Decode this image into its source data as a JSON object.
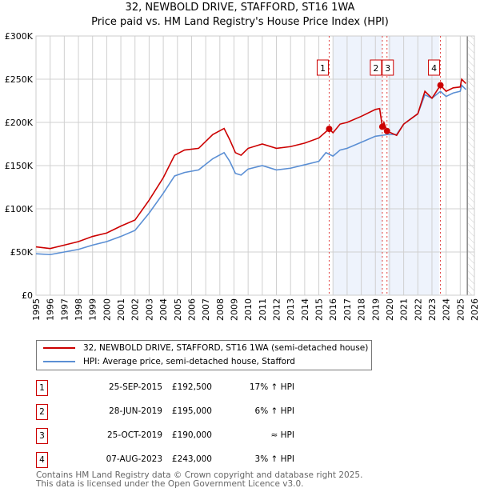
{
  "title": "32, NEWBOLD DRIVE, STAFFORD, ST16 1WA",
  "subtitle": "Price paid vs. HM Land Registry's House Price Index (HPI)",
  "chart_data": {
    "type": "line",
    "title": "Price paid vs. HM Land Registry's House Price Index (HPI)",
    "xlim": [
      1995,
      2026
    ],
    "ylim": [
      0,
      300000
    ],
    "x_ticks": [
      "1995",
      "1996",
      "1997",
      "1998",
      "1999",
      "2000",
      "2001",
      "2002",
      "2003",
      "2004",
      "2005",
      "2006",
      "2007",
      "2008",
      "2009",
      "2010",
      "2011",
      "2012",
      "2013",
      "2014",
      "2015",
      "2016",
      "2017",
      "2018",
      "2019",
      "2020",
      "2021",
      "2022",
      "2023",
      "2024",
      "2025",
      "2026"
    ],
    "y_ticks": [
      {
        "v": 0,
        "label": "£0"
      },
      {
        "v": 50000,
        "label": "£50K"
      },
      {
        "v": 100000,
        "label": "£100K"
      },
      {
        "v": 150000,
        "label": "£150K"
      },
      {
        "v": 200000,
        "label": "£200K"
      },
      {
        "v": 250000,
        "label": "£250K"
      },
      {
        "v": 300000,
        "label": "£300K"
      }
    ],
    "grid": true,
    "series": [
      {
        "name": "32, NEWBOLD DRIVE, STAFFORD, ST16 1WA (semi-detached house)",
        "color": "#cc0000",
        "x": [
          1995,
          1996,
          1997,
          1998,
          1999,
          2000,
          2001,
          2002,
          2003,
          2004,
          2004.8,
          2005.5,
          2006.5,
          2007.5,
          2008.3,
          2008.7,
          2009.1,
          2009.5,
          2010,
          2011,
          2012,
          2013,
          2014,
          2015,
          2015.73,
          2016,
          2016.5,
          2017,
          2018,
          2019,
          2019.3,
          2019.49,
          2019.6,
          2019.82,
          2020.5,
          2021,
          2022,
          2022.5,
          2023,
          2023.6,
          2024,
          2024.5,
          2025,
          2025.1,
          2025.4
        ],
        "y": [
          56000,
          54000,
          58000,
          62000,
          68000,
          72000,
          80000,
          87000,
          110000,
          136000,
          162000,
          168000,
          170000,
          186000,
          193000,
          180000,
          165000,
          162000,
          170000,
          175000,
          170000,
          172000,
          176000,
          182000,
          192500,
          188000,
          198000,
          200000,
          207000,
          215000,
          216000,
          195000,
          200000,
          190000,
          185000,
          198000,
          210000,
          236000,
          228000,
          243000,
          236000,
          240000,
          241000,
          250000,
          245000
        ]
      },
      {
        "name": "HPI: Average price, semi-detached house, Stafford",
        "color": "#5b8fd4",
        "x": [
          1995,
          1996,
          1997,
          1998,
          1999,
          2000,
          2001,
          2002,
          2003,
          2004,
          2004.8,
          2005.5,
          2006.5,
          2007.5,
          2008.3,
          2008.7,
          2009.1,
          2009.5,
          2010,
          2011,
          2012,
          2013,
          2014,
          2015,
          2015.5,
          2016,
          2016.5,
          2017,
          2018,
          2019,
          2019.9,
          2020.5,
          2021,
          2022,
          2022.5,
          2023,
          2023.6,
          2024,
          2024.5,
          2025,
          2025.1,
          2025.4
        ],
        "y": [
          48000,
          47000,
          50000,
          53000,
          58000,
          62000,
          68000,
          75000,
          95000,
          118000,
          138000,
          142000,
          145000,
          158000,
          165000,
          155000,
          141000,
          139000,
          146000,
          150000,
          145000,
          147000,
          151000,
          155000,
          165000,
          161000,
          168000,
          170000,
          177000,
          184000,
          186000,
          186000,
          198000,
          210000,
          232000,
          228000,
          236000,
          230000,
          234000,
          236000,
          243000,
          238000
        ]
      }
    ],
    "sales": [
      {
        "n": "1",
        "x": 2015.73,
        "y": 192500
      },
      {
        "n": "2",
        "x": 2019.49,
        "y": 195000
      },
      {
        "n": "3",
        "x": 2019.82,
        "y": 190000
      },
      {
        "n": "4",
        "x": 2023.6,
        "y": 243000
      }
    ],
    "legend_placement": "below"
  },
  "legend": [
    {
      "label": "32, NEWBOLD DRIVE, STAFFORD, ST16 1WA (semi-detached house)",
      "color": "#cc0000"
    },
    {
      "label": "HPI: Average price, semi-detached house, Stafford",
      "color": "#5b8fd4"
    }
  ],
  "transactions": [
    {
      "n": "1",
      "date": "25-SEP-2015",
      "price": "£192,500",
      "hpi": "17% ↑ HPI"
    },
    {
      "n": "2",
      "date": "28-JUN-2019",
      "price": "£195,000",
      "hpi": "6% ↑ HPI"
    },
    {
      "n": "3",
      "date": "25-OCT-2019",
      "price": "£190,000",
      "hpi": "≈ HPI"
    },
    {
      "n": "4",
      "date": "07-AUG-2023",
      "price": "£243,000",
      "hpi": "3% ↑ HPI"
    }
  ],
  "footer": [
    "Contains HM Land Registry data © Crown copyright and database right 2025.",
    "This data is licensed under the Open Government Licence v3.0."
  ]
}
